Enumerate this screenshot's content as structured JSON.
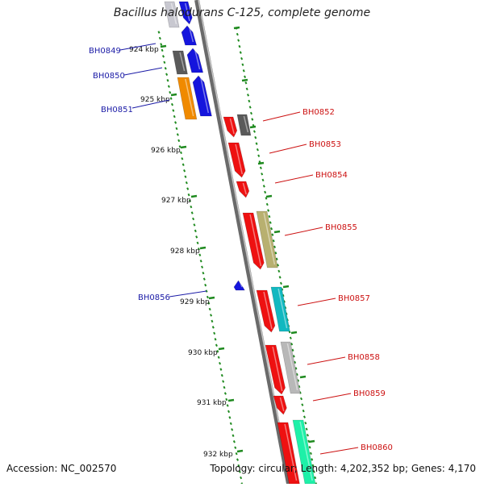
{
  "title": "Bacillus halodurans C-125, complete genome",
  "accession": "Accession: NC_002570",
  "topology": "Topology: circular; Length: 4,202,352 bp; Genes: 4,170",
  "colors": {
    "backbone": "#8a8a8a",
    "ticks": "#1f8a1f",
    "left_labels": "#1a1aa6",
    "right_labels": "#cc1111"
  },
  "ruler": [
    "924 kbp",
    "925 kbp",
    "926 kbp",
    "927 kbp",
    "928 kbp",
    "929 kbp",
    "930 kbp",
    "931 kbp",
    "932 kbp"
  ],
  "genes_left": [
    "BH0849",
    "BH0850",
    "BH0851",
    "BH0856"
  ],
  "genes_right": [
    "BH0852",
    "BH0853",
    "BH0854",
    "BH0855",
    "BH0857",
    "BH0858",
    "BH0859",
    "BH0860"
  ]
}
